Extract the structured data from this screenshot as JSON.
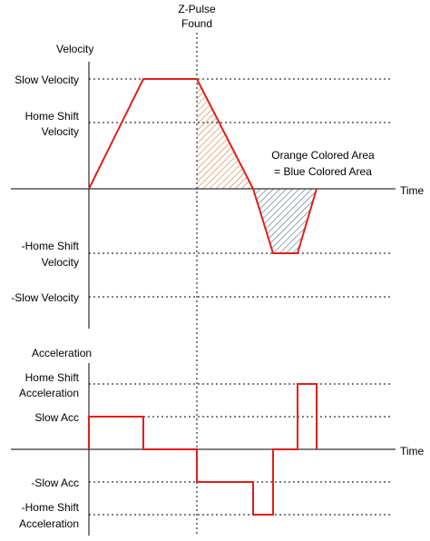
{
  "labels": {
    "zpulse_line1": "Z-Pulse",
    "zpulse_line2": "Found",
    "velocity_title": "Velocity",
    "slow_velocity": "Slow Velocity",
    "home_shift_velocity_line1": "Home Shift",
    "home_shift_velocity_line2": "Velocity",
    "neg_home_shift_velocity_line1": "-Home Shift",
    "neg_home_shift_velocity_line2": "Velocity",
    "neg_slow_velocity": "-Slow Velocity",
    "time_top": "Time",
    "area_note_line1": "Orange Colored Area",
    "area_note_line2": "= Blue Colored Area",
    "acceleration_title": "Acceleration",
    "home_shift_accel_line1": "Home Shift",
    "home_shift_accel_line2": "Acceleration",
    "slow_acc": "Slow Acc",
    "time_bottom": "Time",
    "neg_slow_acc": "-Slow Acc",
    "neg_home_shift_accel_line1": "-Home Shift",
    "neg_home_shift_accel_line2": "Acceleration"
  },
  "colors": {
    "trace": "#e0201b",
    "orange_hatch": "#c97f3f",
    "blue_hatch": "#4a6a86"
  }
}
